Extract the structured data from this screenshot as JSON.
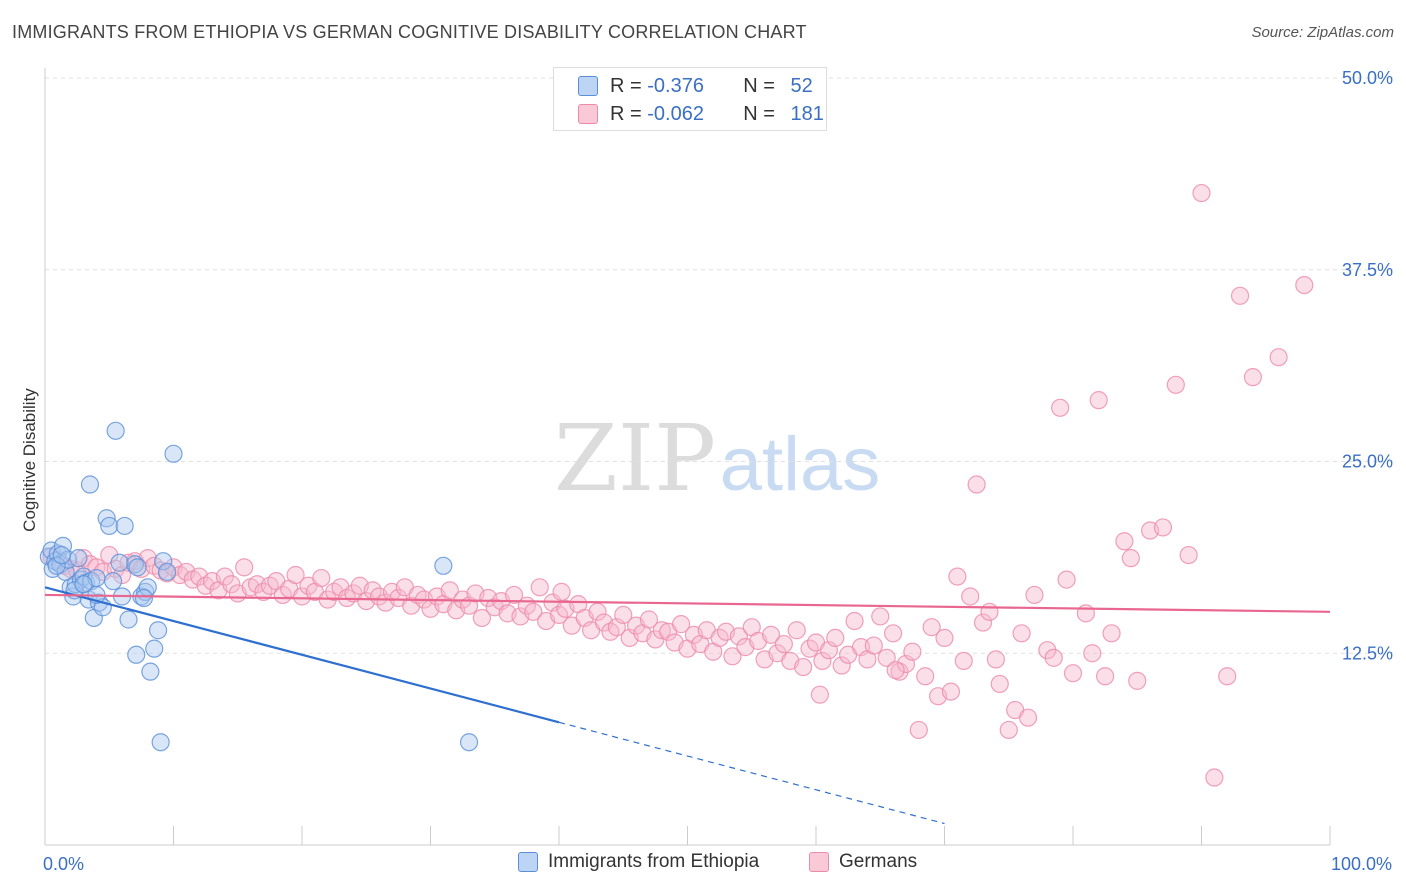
{
  "header": {
    "title": "IMMIGRANTS FROM ETHIOPIA VS GERMAN COGNITIVE DISABILITY CORRELATION CHART",
    "source": "Source: ZipAtlas.com"
  },
  "legend": {
    "r_label": "R =",
    "n_label": "N =",
    "rows": [
      {
        "r": "-0.376",
        "n": "52"
      },
      {
        "r": "-0.062",
        "n": "181"
      }
    ]
  },
  "watermark": {
    "zip": "ZIP",
    "atlas": "atlas"
  },
  "colors": {
    "blue_fill": "#a9c8f0",
    "blue_stroke": "#5b8fd8",
    "blue_line": "#2f6fcf",
    "pink_fill": "#f7b8cc",
    "pink_stroke": "#ec8aa9",
    "pink_line": "#e8668f",
    "tick_text": "#3a6fc4"
  },
  "chart_data": {
    "type": "scatter",
    "ylabel": "Cognitive Disability",
    "xlim": [
      0,
      100
    ],
    "ylim": [
      0,
      50
    ],
    "x_ticks": [
      0,
      100
    ],
    "x_tick_labels": [
      "0.0%",
      "100.0%"
    ],
    "y_ticks": [
      12.5,
      25.0,
      37.5,
      50.0
    ],
    "y_tick_labels": [
      "12.5%",
      "25.0%",
      "37.5%",
      "50.0%"
    ],
    "grid": true,
    "series": [
      {
        "name": "Immigrants from Ethiopia",
        "trend": {
          "x0": 0,
          "y0": 16.8,
          "x1": 40,
          "y1": 8.0,
          "dashed_to_x": 70
        },
        "points": [
          [
            0.3,
            18.8
          ],
          [
            0.5,
            19.2
          ],
          [
            0.6,
            18.0
          ],
          [
            0.8,
            18.5
          ],
          [
            1.0,
            19.0
          ],
          [
            1.2,
            18.3
          ],
          [
            1.4,
            19.5
          ],
          [
            1.6,
            17.8
          ],
          [
            1.8,
            18.6
          ],
          [
            2.0,
            16.8
          ],
          [
            2.2,
            16.2
          ],
          [
            2.4,
            17.0
          ],
          [
            2.6,
            18.7
          ],
          [
            2.8,
            17.3
          ],
          [
            3.0,
            17.5
          ],
          [
            3.2,
            17.1
          ],
          [
            3.4,
            16.0
          ],
          [
            3.6,
            17.2
          ],
          [
            3.8,
            14.8
          ],
          [
            4.0,
            17.4
          ],
          [
            4.2,
            15.8
          ],
          [
            4.5,
            15.5
          ],
          [
            4.8,
            21.3
          ],
          [
            5.0,
            20.8
          ],
          [
            5.3,
            17.2
          ],
          [
            5.5,
            27.0
          ],
          [
            6.0,
            16.2
          ],
          [
            6.2,
            20.8
          ],
          [
            6.5,
            14.7
          ],
          [
            7.0,
            18.3
          ],
          [
            7.2,
            18.1
          ],
          [
            7.5,
            16.2
          ],
          [
            7.8,
            16.5
          ],
          [
            8.0,
            16.8
          ],
          [
            8.2,
            11.3
          ],
          [
            8.5,
            12.8
          ],
          [
            8.8,
            14.0
          ],
          [
            9.0,
            6.7
          ],
          [
            9.2,
            18.5
          ],
          [
            9.5,
            17.8
          ],
          [
            10.0,
            25.5
          ],
          [
            3.5,
            23.5
          ],
          [
            0.9,
            18.2
          ],
          [
            1.3,
            18.9
          ],
          [
            2.3,
            16.6
          ],
          [
            4.0,
            16.3
          ],
          [
            5.8,
            18.4
          ],
          [
            7.1,
            12.4
          ],
          [
            7.7,
            16.1
          ],
          [
            31.0,
            18.2
          ],
          [
            33.0,
            6.7
          ],
          [
            3.0,
            17.0
          ]
        ]
      },
      {
        "name": "Germans",
        "trend": {
          "x0": 0,
          "y0": 16.3,
          "x1": 100,
          "y1": 15.2
        },
        "points": [
          [
            0.5,
            18.8
          ],
          [
            1.0,
            18.6
          ],
          [
            1.5,
            18.2
          ],
          [
            2.0,
            18.0
          ],
          [
            2.5,
            17.9
          ],
          [
            3.0,
            18.7
          ],
          [
            3.5,
            18.3
          ],
          [
            4.0,
            18.1
          ],
          [
            4.5,
            17.8
          ],
          [
            5.0,
            18.9
          ],
          [
            5.5,
            18.0
          ],
          [
            6.0,
            17.6
          ],
          [
            6.5,
            18.4
          ],
          [
            7.0,
            18.5
          ],
          [
            7.5,
            18.0
          ],
          [
            8.0,
            18.7
          ],
          [
            8.5,
            18.2
          ],
          [
            9.0,
            17.9
          ],
          [
            9.5,
            17.7
          ],
          [
            10.0,
            18.1
          ],
          [
            10.5,
            17.6
          ],
          [
            11.0,
            17.8
          ],
          [
            11.5,
            17.3
          ],
          [
            12.0,
            17.5
          ],
          [
            12.5,
            16.9
          ],
          [
            13.0,
            17.2
          ],
          [
            13.5,
            16.6
          ],
          [
            14.0,
            17.5
          ],
          [
            14.5,
            17.0
          ],
          [
            15.0,
            16.4
          ],
          [
            15.5,
            18.1
          ],
          [
            16.0,
            16.8
          ],
          [
            16.5,
            17.0
          ],
          [
            17.0,
            16.5
          ],
          [
            17.5,
            16.9
          ],
          [
            18.0,
            17.2
          ],
          [
            18.5,
            16.3
          ],
          [
            19.0,
            16.7
          ],
          [
            19.5,
            17.6
          ],
          [
            20.0,
            16.2
          ],
          [
            20.5,
            16.9
          ],
          [
            21.0,
            16.5
          ],
          [
            21.5,
            17.4
          ],
          [
            22.0,
            16.0
          ],
          [
            22.5,
            16.5
          ],
          [
            23.0,
            16.8
          ],
          [
            23.5,
            16.1
          ],
          [
            24.0,
            16.4
          ],
          [
            24.5,
            16.9
          ],
          [
            25.0,
            15.9
          ],
          [
            25.5,
            16.6
          ],
          [
            26.0,
            16.2
          ],
          [
            26.5,
            15.8
          ],
          [
            27.0,
            16.5
          ],
          [
            27.5,
            16.1
          ],
          [
            28.0,
            16.8
          ],
          [
            28.5,
            15.6
          ],
          [
            29.0,
            16.3
          ],
          [
            29.5,
            16.0
          ],
          [
            30.0,
            15.4
          ],
          [
            30.5,
            16.2
          ],
          [
            31.0,
            15.7
          ],
          [
            31.5,
            16.6
          ],
          [
            32.0,
            15.3
          ],
          [
            32.5,
            16.0
          ],
          [
            33.0,
            15.6
          ],
          [
            33.5,
            16.4
          ],
          [
            34.0,
            14.8
          ],
          [
            34.5,
            16.1
          ],
          [
            35.0,
            15.5
          ],
          [
            35.5,
            15.9
          ],
          [
            36.0,
            15.1
          ],
          [
            36.5,
            16.3
          ],
          [
            37.0,
            14.9
          ],
          [
            37.5,
            15.6
          ],
          [
            38.0,
            15.2
          ],
          [
            38.5,
            16.8
          ],
          [
            39.0,
            14.6
          ],
          [
            39.5,
            15.8
          ],
          [
            40.0,
            15.0
          ],
          [
            40.5,
            15.4
          ],
          [
            41.0,
            14.3
          ],
          [
            41.5,
            15.7
          ],
          [
            42.0,
            14.8
          ],
          [
            42.5,
            14.0
          ],
          [
            43.0,
            15.2
          ],
          [
            43.5,
            14.5
          ],
          [
            44.0,
            13.9
          ],
          [
            44.5,
            14.2
          ],
          [
            45.0,
            15.0
          ],
          [
            45.5,
            13.5
          ],
          [
            46.0,
            14.3
          ],
          [
            46.5,
            13.8
          ],
          [
            47.0,
            14.7
          ],
          [
            47.5,
            13.4
          ],
          [
            48.0,
            14.0
          ],
          [
            48.5,
            13.9
          ],
          [
            49.0,
            13.2
          ],
          [
            49.5,
            14.4
          ],
          [
            50.0,
            12.8
          ],
          [
            50.5,
            13.7
          ],
          [
            51.0,
            13.1
          ],
          [
            51.5,
            14.0
          ],
          [
            52.0,
            12.6
          ],
          [
            52.5,
            13.5
          ],
          [
            53.0,
            13.9
          ],
          [
            53.5,
            12.3
          ],
          [
            54.0,
            13.6
          ],
          [
            54.5,
            12.9
          ],
          [
            55.0,
            14.2
          ],
          [
            55.5,
            13.3
          ],
          [
            56.0,
            12.1
          ],
          [
            56.5,
            13.7
          ],
          [
            57.0,
            12.5
          ],
          [
            57.5,
            13.1
          ],
          [
            58.0,
            12.0
          ],
          [
            58.5,
            14.0
          ],
          [
            59.0,
            11.6
          ],
          [
            59.5,
            12.8
          ],
          [
            60.0,
            13.2
          ],
          [
            60.5,
            12.0
          ],
          [
            61.0,
            12.7
          ],
          [
            61.5,
            13.5
          ],
          [
            62.0,
            11.7
          ],
          [
            62.5,
            12.4
          ],
          [
            63.0,
            14.6
          ],
          [
            63.5,
            12.9
          ],
          [
            64.0,
            12.1
          ],
          [
            64.5,
            13.0
          ],
          [
            65.0,
            14.9
          ],
          [
            65.5,
            12.2
          ],
          [
            66.0,
            13.8
          ],
          [
            66.5,
            11.3
          ],
          [
            67.0,
            11.8
          ],
          [
            67.5,
            12.6
          ],
          [
            68.0,
            7.5
          ],
          [
            68.5,
            11.0
          ],
          [
            69.0,
            14.2
          ],
          [
            69.5,
            9.7
          ],
          [
            70.0,
            13.5
          ],
          [
            71.0,
            17.5
          ],
          [
            71.5,
            12.0
          ],
          [
            72.0,
            16.2
          ],
          [
            72.5,
            23.5
          ],
          [
            73.0,
            14.5
          ],
          [
            73.5,
            15.2
          ],
          [
            74.0,
            12.1
          ],
          [
            75.0,
            7.5
          ],
          [
            75.5,
            8.8
          ],
          [
            76.0,
            13.8
          ],
          [
            76.5,
            8.3
          ],
          [
            77.0,
            16.3
          ],
          [
            78.0,
            12.7
          ],
          [
            78.5,
            12.2
          ],
          [
            79.0,
            28.5
          ],
          [
            79.5,
            17.3
          ],
          [
            80.0,
            11.2
          ],
          [
            81.0,
            15.1
          ],
          [
            81.5,
            12.5
          ],
          [
            82.0,
            29.0
          ],
          [
            82.5,
            11.0
          ],
          [
            83.0,
            13.8
          ],
          [
            84.0,
            19.8
          ],
          [
            84.5,
            18.7
          ],
          [
            85.0,
            10.7
          ],
          [
            86.0,
            20.5
          ],
          [
            87.0,
            20.7
          ],
          [
            88.0,
            30.0
          ],
          [
            89.0,
            18.9
          ],
          [
            90.0,
            42.5
          ],
          [
            91.0,
            4.4
          ],
          [
            92.0,
            11.0
          ],
          [
            93.0,
            35.8
          ],
          [
            94.0,
            30.5
          ],
          [
            96.0,
            31.8
          ],
          [
            98.0,
            36.5
          ],
          [
            40.2,
            16.5
          ],
          [
            60.3,
            9.8
          ],
          [
            66.2,
            11.4
          ],
          [
            70.5,
            10.0
          ],
          [
            74.3,
            10.5
          ]
        ]
      }
    ]
  }
}
